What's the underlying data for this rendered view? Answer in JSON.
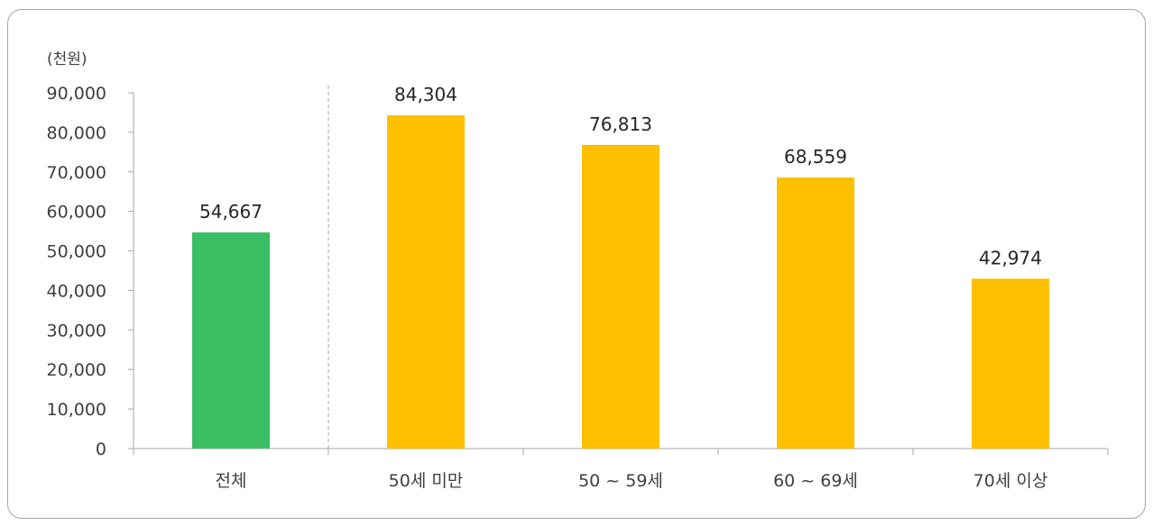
{
  "chart_data": {
    "type": "bar",
    "unit_label": "(천원)",
    "categories": [
      "전체",
      "50세 미만",
      "50 ~ 59세",
      "60 ~ 69세",
      "70세 이상"
    ],
    "values": [
      54667,
      84304,
      76813,
      68559,
      42974
    ],
    "value_labels": [
      "54,667",
      "84,304",
      "76,813",
      "68,559",
      "42,974"
    ],
    "yticks": [
      "0",
      "10,000",
      "20,000",
      "30,000",
      "40,000",
      "50,000",
      "60,000",
      "70,000",
      "80,000",
      "90,000"
    ],
    "ylim": [
      0,
      90000
    ],
    "grid": false,
    "colors": {
      "total": "#3bbd63",
      "group": "#ffc000",
      "axis": "#a6a6a6",
      "separator": "#a6a6a6"
    }
  }
}
